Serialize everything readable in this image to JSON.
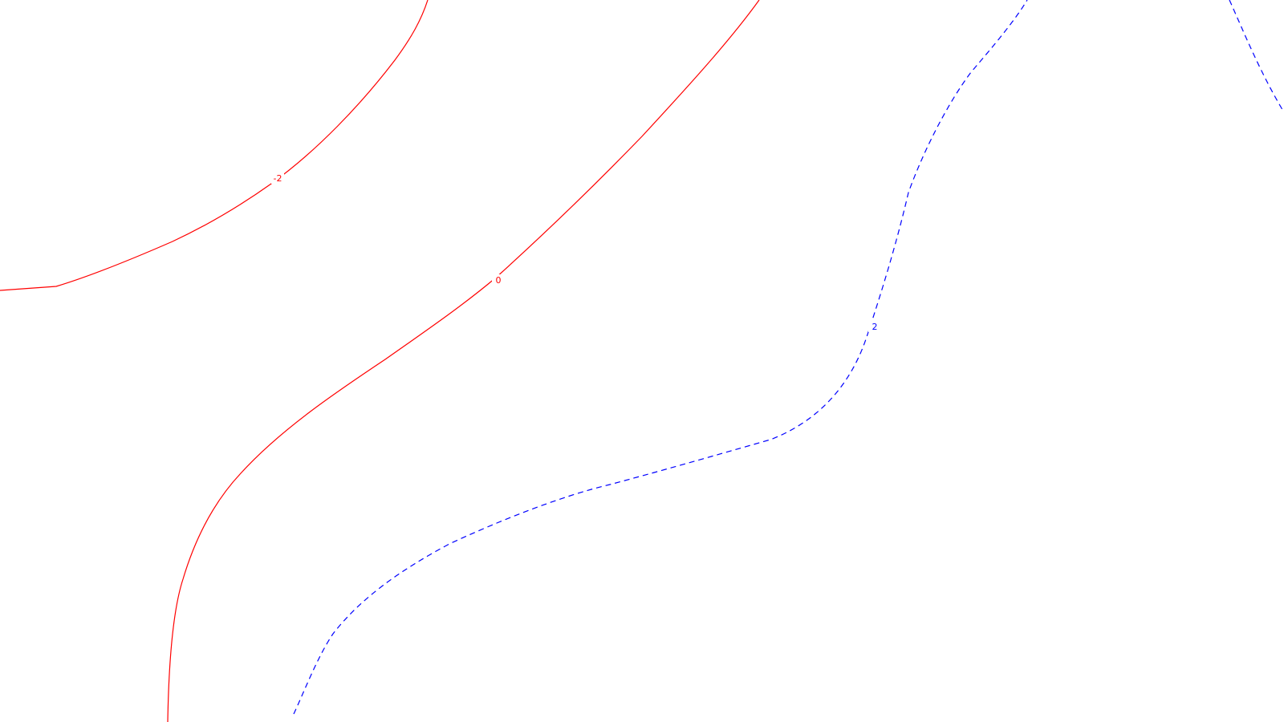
{
  "chart_data": {
    "type": "contour",
    "title": "",
    "xlabel": "",
    "ylabel": "",
    "grid": false,
    "legend": "none",
    "contours": [
      {
        "level": "-2",
        "color": "#ff0000",
        "line_style": "solid"
      },
      {
        "level": "0",
        "color": "#ff0000",
        "line_style": "solid"
      },
      {
        "level": "2",
        "color": "#0000ff",
        "line_style": "dashed"
      }
    ]
  }
}
